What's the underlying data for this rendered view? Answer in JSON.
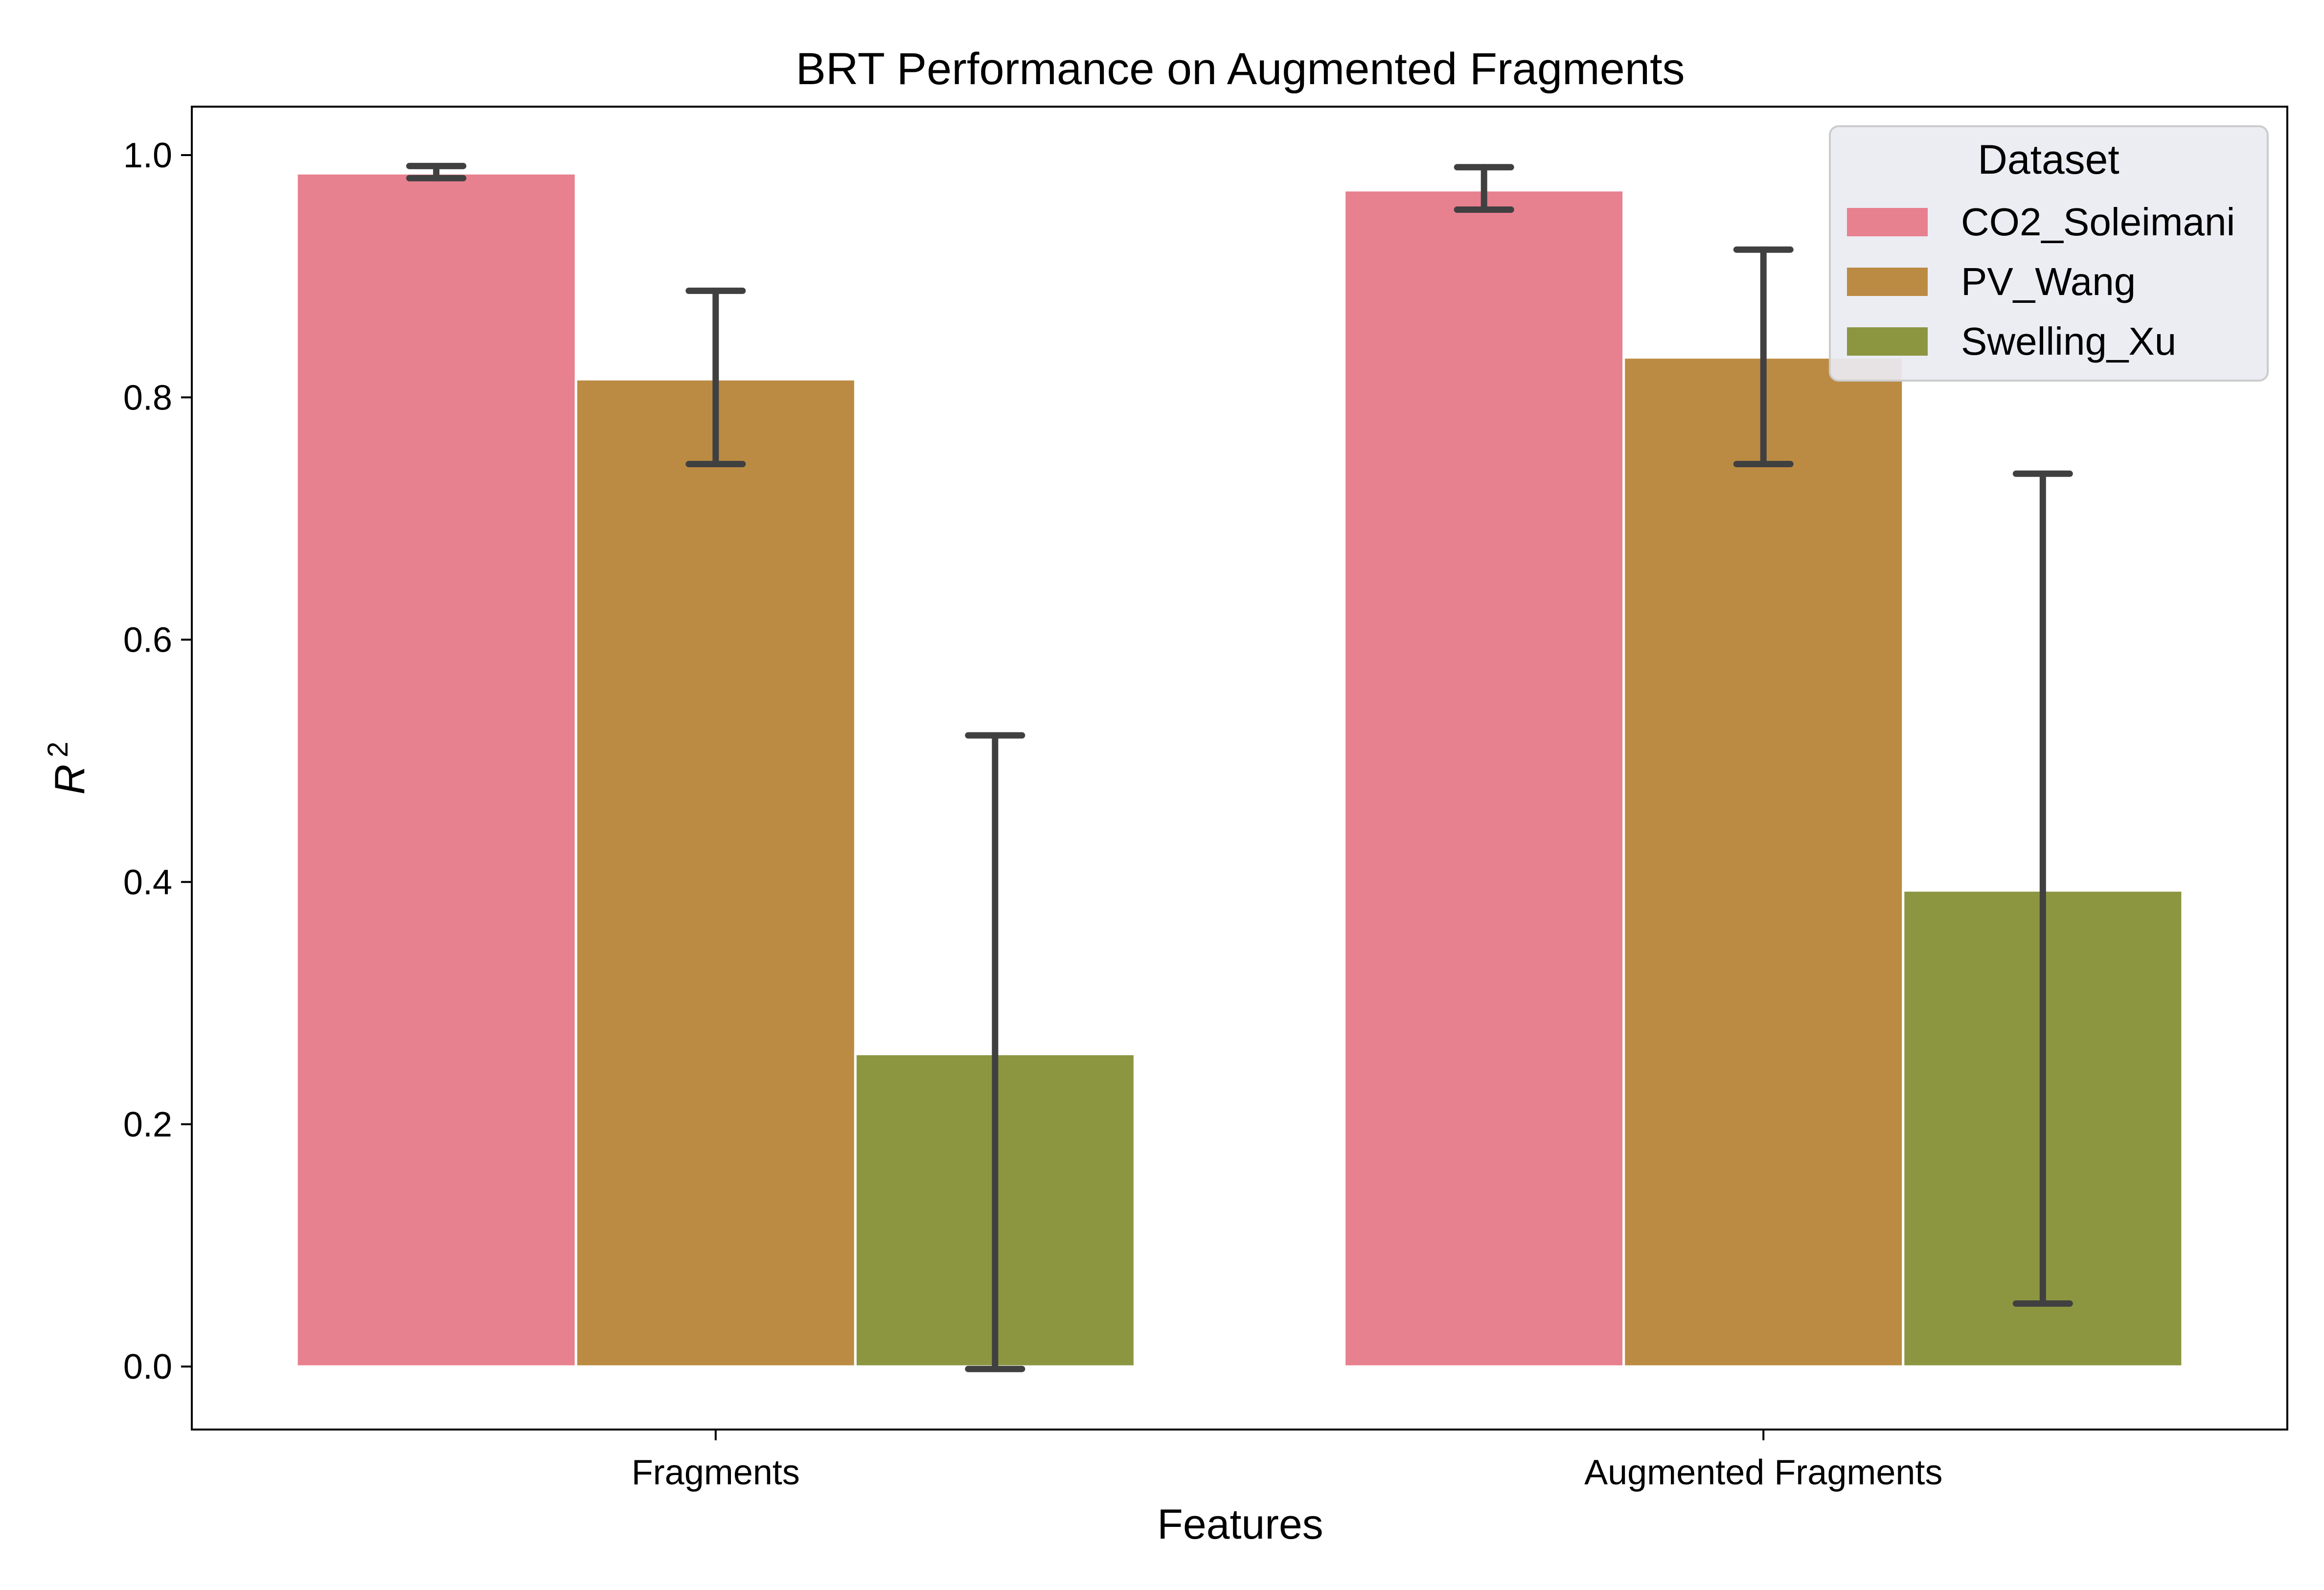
{
  "chart_data": {
    "type": "bar",
    "title": "BRT Performance on Augmented Fragments",
    "xlabel": "Features",
    "ylabel": "R²",
    "ylabel_base": "R",
    "ylabel_sup": "2",
    "categories": [
      "Fragments",
      "Augmented Fragments"
    ],
    "series": [
      {
        "name": "CO2_Soleimani",
        "color": "#e7808f",
        "values": [
          0.985,
          0.971
        ],
        "err_low": [
          0.981,
          0.955
        ],
        "err_high": [
          0.991,
          0.99
        ]
      },
      {
        "name": "PV_Wang",
        "color": "#bb8b43",
        "values": [
          0.815,
          0.833
        ],
        "err_low": [
          0.745,
          0.745
        ],
        "err_high": [
          0.888,
          0.922
        ]
      },
      {
        "name": "Swelling_Xu",
        "color": "#8c9641",
        "values": [
          0.258,
          0.393
        ],
        "err_low": [
          -0.002,
          0.052
        ],
        "err_high": [
          0.521,
          0.737
        ]
      }
    ],
    "ylim": [
      -0.052,
      1.04
    ],
    "yticks": [
      0.0,
      0.2,
      0.4,
      0.6,
      0.8,
      1.0
    ],
    "ytick_labels": [
      "0.0",
      "0.2",
      "0.4",
      "0.6",
      "0.8",
      "1.0"
    ],
    "legend": {
      "title": "Dataset",
      "position": "upper right"
    },
    "grid": false
  }
}
